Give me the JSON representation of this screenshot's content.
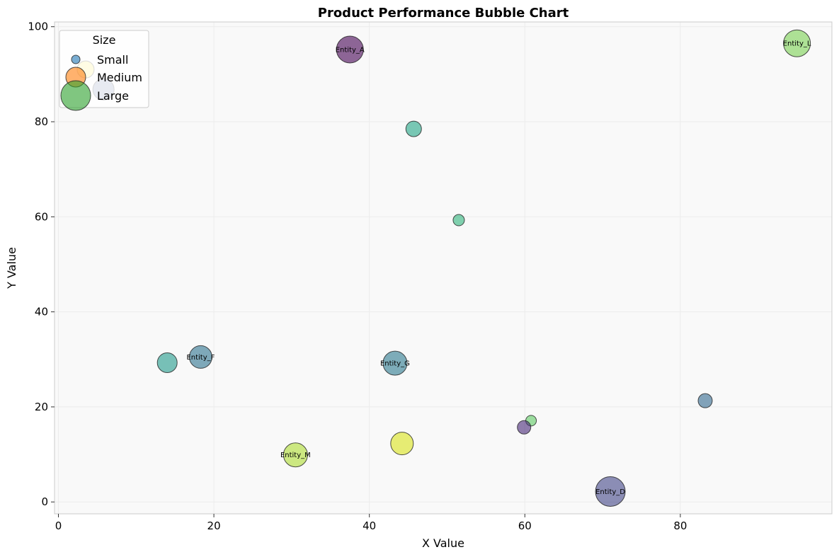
{
  "chart_data": {
    "type": "scatter",
    "title": "Product Performance Bubble Chart",
    "xlabel": "X Value",
    "ylabel": "Y Value",
    "xlim": [
      -0.5,
      99.5
    ],
    "ylim": [
      -2.5,
      101
    ],
    "x_ticks": [
      0,
      20,
      40,
      60,
      80
    ],
    "y_ticks": [
      0,
      20,
      40,
      60,
      80,
      100
    ],
    "grid": true,
    "legend": {
      "title": "Size",
      "placement": "upper-left",
      "entries": [
        {
          "label": "Small",
          "color": "#1f77b4",
          "size": 12
        },
        {
          "label": "Medium",
          "color": "#ff7f0e",
          "size": 28
        },
        {
          "label": "Large",
          "color": "#2ca02c",
          "size": 42
        }
      ]
    },
    "points": [
      {
        "x": 37.5,
        "y": 95.2,
        "size": 38,
        "color": "#440154",
        "label": "Entity_A"
      },
      {
        "x": 95.0,
        "y": 96.5,
        "size": 38,
        "color": "#7ad151",
        "label": "Entity_L"
      },
      {
        "x": 3.5,
        "y": 91.0,
        "size": 24,
        "color": "#fde725",
        "label": ""
      },
      {
        "x": 5.8,
        "y": 86.8,
        "size": 30,
        "color": "#3b528b",
        "label": ""
      },
      {
        "x": 45.7,
        "y": 78.5,
        "size": 22,
        "color": "#21a585",
        "label": ""
      },
      {
        "x": 51.5,
        "y": 59.3,
        "size": 16,
        "color": "#2fb47c",
        "label": ""
      },
      {
        "x": 14.0,
        "y": 29.3,
        "size": 28,
        "color": "#1f9a8a",
        "label": ""
      },
      {
        "x": 18.3,
        "y": 30.5,
        "size": 32,
        "color": "#2c728e",
        "label": "Entity_F"
      },
      {
        "x": 43.3,
        "y": 29.2,
        "size": 34,
        "color": "#2a788e",
        "label": "Entity_G"
      },
      {
        "x": 83.2,
        "y": 21.3,
        "size": 20,
        "color": "#31688e",
        "label": ""
      },
      {
        "x": 60.8,
        "y": 17.1,
        "size": 15,
        "color": "#5ec962",
        "label": ""
      },
      {
        "x": 59.9,
        "y": 15.7,
        "size": 19,
        "color": "#482878",
        "label": ""
      },
      {
        "x": 44.2,
        "y": 12.3,
        "size": 32,
        "color": "#d8e219",
        "label": ""
      },
      {
        "x": 30.5,
        "y": 9.9,
        "size": 34,
        "color": "#addc30",
        "label": "Entity_M"
      },
      {
        "x": 71.0,
        "y": 2.2,
        "size": 42,
        "color": "#414487",
        "label": "Entity_D"
      }
    ]
  }
}
